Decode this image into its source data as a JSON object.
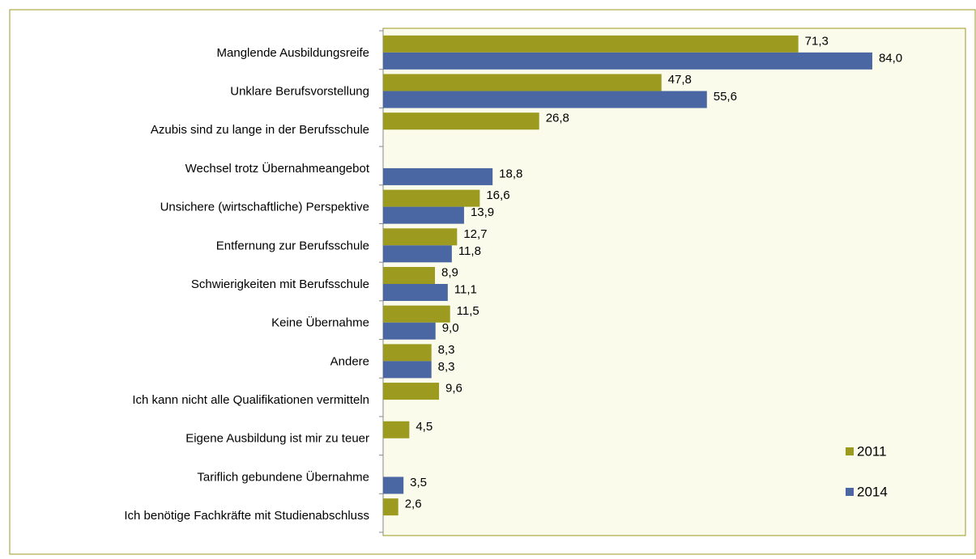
{
  "chart_data": {
    "type": "bar",
    "orientation": "horizontal",
    "categories": [
      "Manglende Ausbildungsreife",
      "Unklare Berufsvorstellung",
      "Azubis sind zu lange in der Berufsschule",
      "Wechsel trotz Übernahmeangebot",
      "Unsichere (wirtschaftliche) Perspektive",
      "Entfernung zur Berufsschule",
      "Schwierigkeiten mit Berufsschule",
      "Keine Übernahme",
      "Andere",
      "Ich kann nicht alle Qualifikationen vermitteln",
      "Eigene Ausbildung ist mir zu teuer",
      "Tariflich gebundene Übernahme",
      "Ich benötige Fachkräfte mit Studienabschluss"
    ],
    "series": [
      {
        "name": "2011",
        "color": "#9c9a1f",
        "values": [
          71.3,
          47.8,
          26.8,
          null,
          16.6,
          12.7,
          8.9,
          11.5,
          8.3,
          9.6,
          4.5,
          null,
          2.6
        ],
        "value_labels": [
          "71,3",
          "47,8",
          "26,8",
          null,
          "16,6",
          "12,7",
          "8,9",
          "11,5",
          "8,3",
          "9,6",
          "4,5",
          null,
          "2,6"
        ]
      },
      {
        "name": "2014",
        "color": "#4a67a3",
        "values": [
          84.0,
          55.6,
          null,
          18.8,
          13.9,
          11.8,
          11.1,
          9.0,
          8.3,
          null,
          null,
          3.5,
          null
        ],
        "value_labels": [
          "84,0",
          "55,6",
          null,
          "18,8",
          "13,9",
          "11,8",
          "11,1",
          "9,0",
          "8,3",
          null,
          null,
          "3,5",
          null
        ]
      }
    ],
    "xlim": [
      0,
      100
    ],
    "legend": "bottom-right"
  }
}
